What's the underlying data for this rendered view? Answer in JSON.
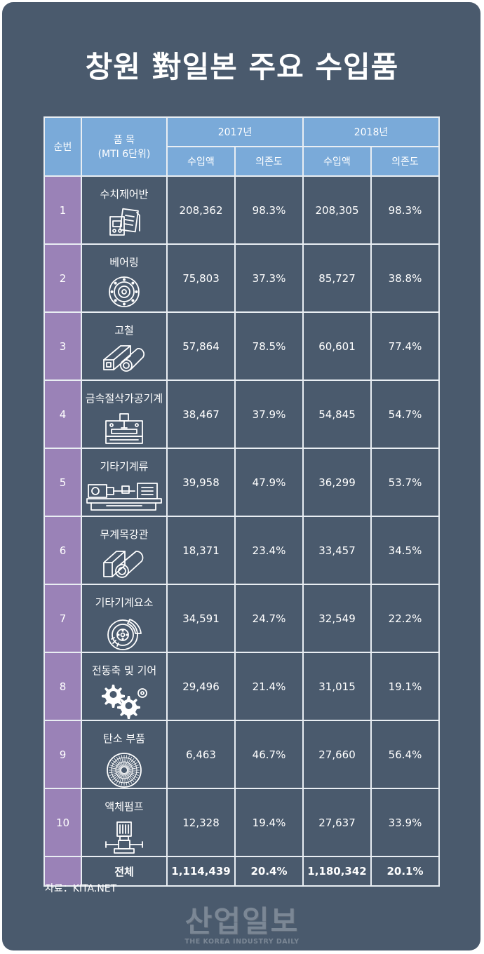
{
  "title": "창원 對일본 주요 수입품",
  "table": {
    "headers": {
      "rank": "순번",
      "item_line1": "품 목",
      "item_line2": "(MTI 6단위)",
      "year1": "2017년",
      "year2": "2018년",
      "amount": "수입액",
      "dependency": "의존도"
    },
    "rows": [
      {
        "rank": "1",
        "item": "수치제어반",
        "icon": "numerical-control-panel-icon",
        "a2017": "208,362",
        "d2017": "98.3%",
        "a2018": "208,305",
        "d2018": "98.3%"
      },
      {
        "rank": "2",
        "item": "베어링",
        "icon": "bearing-icon",
        "a2017": "75,803",
        "d2017": "37.3%",
        "a2018": "85,727",
        "d2018": "38.8%"
      },
      {
        "rank": "3",
        "item": "고철",
        "icon": "scrap-steel-icon",
        "a2017": "57,864",
        "d2017": "78.5%",
        "a2018": "60,601",
        "d2018": "77.4%"
      },
      {
        "rank": "4",
        "item": "금속절삭가공기계",
        "icon": "cnc-machine-icon",
        "a2017": "38,467",
        "d2017": "37.9%",
        "a2018": "54,845",
        "d2018": "54.7%"
      },
      {
        "rank": "5",
        "item": "기타기계류",
        "icon": "lathe-machine-icon",
        "a2017": "39,958",
        "d2017": "47.9%",
        "a2018": "36,299",
        "d2018": "53.7%"
      },
      {
        "rank": "6",
        "item": "무계목강관",
        "icon": "seamless-pipe-icon",
        "a2017": "18,371",
        "d2017": "23.4%",
        "a2018": "33,457",
        "d2018": "34.5%"
      },
      {
        "rank": "7",
        "item": "기타기계요소",
        "icon": "brake-disc-icon",
        "a2017": "34,591",
        "d2017": "24.7%",
        "a2018": "32,549",
        "d2018": "22.2%"
      },
      {
        "rank": "8",
        "item": "전동축 및 기어",
        "icon": "gears-icon",
        "a2017": "29,496",
        "d2017": "21.4%",
        "a2018": "31,015",
        "d2018": "19.1%"
      },
      {
        "rank": "9",
        "item": "탄소 부품",
        "icon": "carbon-part-icon",
        "a2017": "6,463",
        "d2017": "46.7%",
        "a2018": "27,660",
        "d2018": "56.4%"
      },
      {
        "rank": "10",
        "item": "액체펌프",
        "icon": "liquid-pump-icon",
        "a2017": "12,328",
        "d2017": "19.4%",
        "a2018": "27,637",
        "d2018": "33.9%"
      }
    ],
    "total": {
      "label": "전체",
      "a2017": "1,114,439",
      "d2017": "20.4%",
      "a2018": "1,180,342",
      "d2018": "20.1%"
    }
  },
  "source": "자료：KITA.NET",
  "logo": {
    "korean": "산업일보",
    "english": "THE KOREA INDUSTRY DAILY"
  },
  "colors": {
    "background": "#4a5a6d",
    "header": "#7aaad9",
    "rank_cell": "#9a82b7",
    "grid": "#e9eef3",
    "text": "#ffffff"
  }
}
